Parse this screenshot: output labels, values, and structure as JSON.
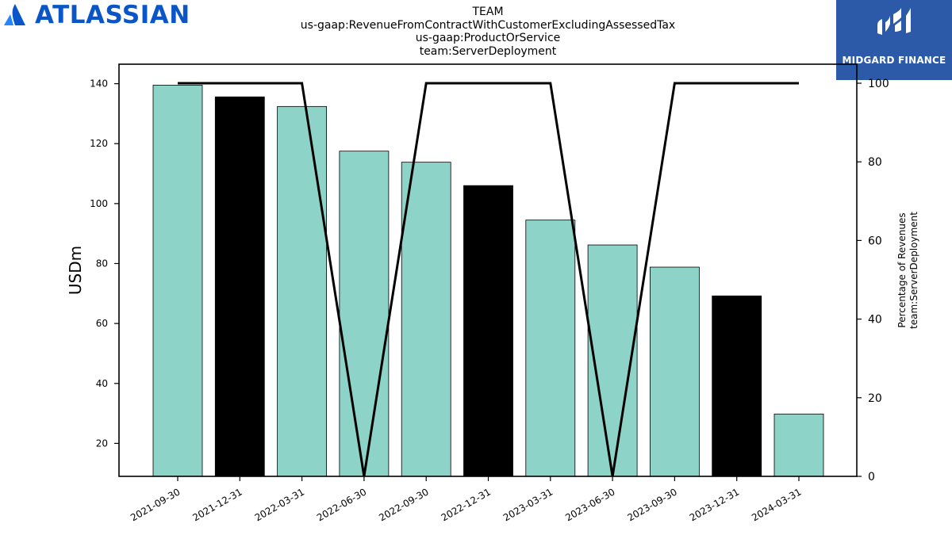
{
  "logos": {
    "left": {
      "text": "ATLASSIAN",
      "icon": "atlassian-a-icon",
      "color": "#0a56c9"
    },
    "right": {
      "text": "MIDGARD FINANCE",
      "icon": "midgard-mf-icon",
      "background": "#2c5aa8"
    }
  },
  "chart_data": {
    "type": "bar",
    "title_lines": [
      "TEAM",
      "us-gaap:RevenueFromContractWithCustomerExcludingAssessedTax",
      "us-gaap:ProductOrService",
      "team:ServerDeployment"
    ],
    "categories": [
      "2021-09-30",
      "2021-12-31",
      "2022-03-31",
      "2022-06-30",
      "2022-09-30",
      "2022-12-31",
      "2023-03-31",
      "2023-06-30",
      "2023-09-30",
      "2023-12-31",
      "2024-03-31"
    ],
    "series": [
      {
        "type": "bar",
        "axis": "left",
        "values": [
          139.5,
          135.6,
          132.4,
          117.5,
          113.8,
          106.0,
          94.5,
          86.2,
          78.8,
          69.2,
          29.8
        ],
        "colors": [
          "#8dd3c7",
          "#000000",
          "#8dd3c7",
          "#8dd3c7",
          "#8dd3c7",
          "#000000",
          "#8dd3c7",
          "#8dd3c7",
          "#8dd3c7",
          "#000000",
          "#8dd3c7"
        ]
      },
      {
        "type": "line",
        "axis": "right",
        "color": "#000000",
        "values": [
          100,
          100,
          100,
          0,
          100,
          100,
          100,
          0,
          100,
          100,
          100
        ]
      }
    ],
    "ylabel": "USDm",
    "ylabel_right": [
      "Percentage of Revenues",
      "team:ServerDeployment"
    ],
    "ylim": [
      9.0,
      146.5
    ],
    "yticks": [
      20,
      40,
      60,
      80,
      100,
      120,
      140
    ],
    "ylim_right": [
      0,
      100
    ],
    "yticks_right": [
      0,
      20,
      40,
      60,
      80,
      100
    ],
    "grid": false,
    "legend": "none"
  }
}
